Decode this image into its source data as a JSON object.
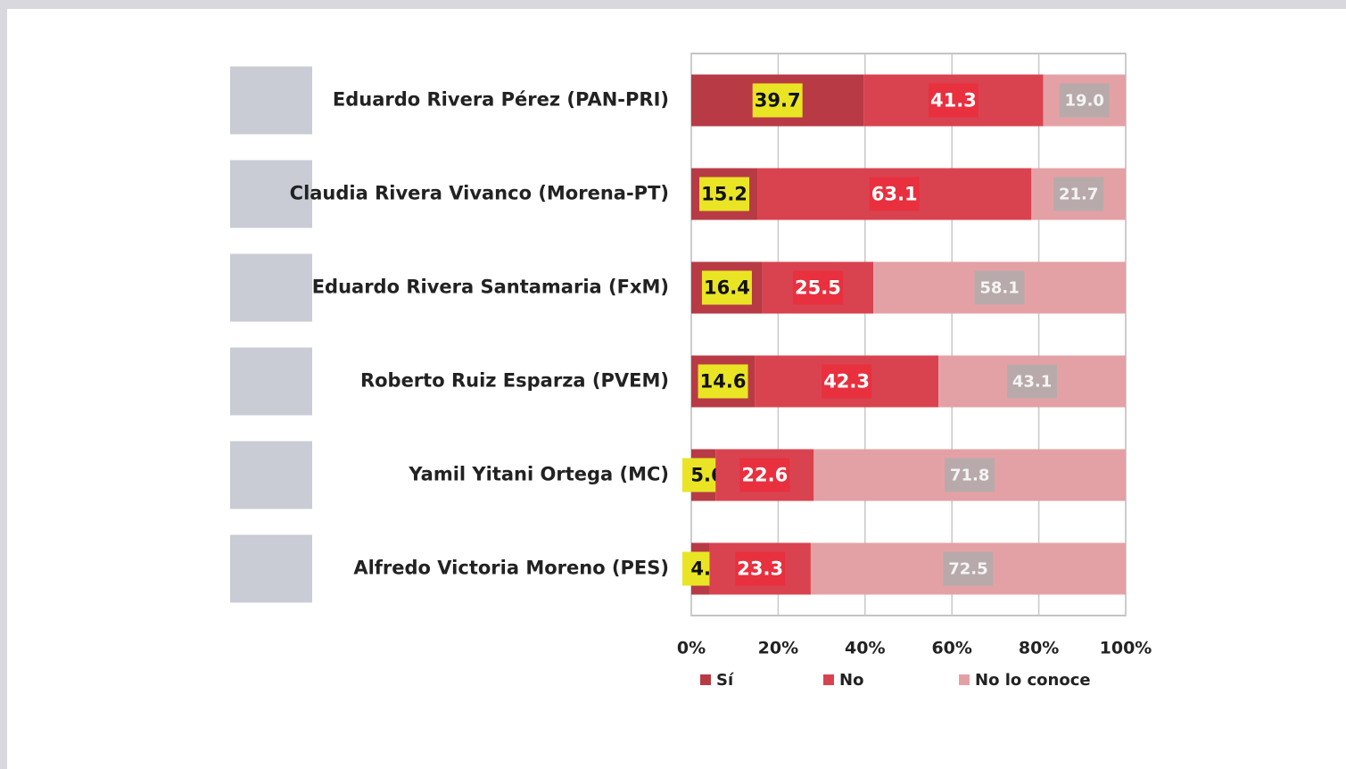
{
  "chart_data": {
    "type": "stacked_barh",
    "categories": [
      "Eduardo Rivera Pérez (PAN-PRI)",
      "Claudia Rivera Vivanco (Morena-PT)",
      "Eduardo Rivera Santamaria (FxM)",
      "Roberto Ruiz Esparza (PVEM)",
      "Yamil Yitani Ortega (MC)",
      "Alfredo Victoria Moreno (PES)"
    ],
    "series": [
      {
        "name": "Sí",
        "color": "#b83a45",
        "values": [
          39.7,
          15.2,
          16.4,
          14.6,
          5.6,
          4.2
        ]
      },
      {
        "name": "No",
        "color": "#d9434f",
        "values": [
          41.3,
          63.1,
          25.5,
          42.3,
          22.6,
          23.3
        ]
      },
      {
        "name": "No lo conoce",
        "color": "#e4a1a5",
        "values": [
          19.0,
          21.7,
          58.1,
          43.1,
          71.8,
          72.5
        ],
        "value_labels": [
          "19.0",
          "21.7",
          "58.1",
          "43.1",
          "71.8",
          "72.5"
        ]
      }
    ],
    "xlim": [
      0,
      100
    ],
    "xticks": [
      {
        "value": 0,
        "label": "0%"
      },
      {
        "value": 20,
        "label": "20%"
      },
      {
        "value": 40,
        "label": "40%"
      },
      {
        "value": 60,
        "label": "60%"
      },
      {
        "value": 80,
        "label": "80%"
      },
      {
        "value": 100,
        "label": "100%"
      }
    ],
    "grid": true,
    "legend": "bottom"
  }
}
